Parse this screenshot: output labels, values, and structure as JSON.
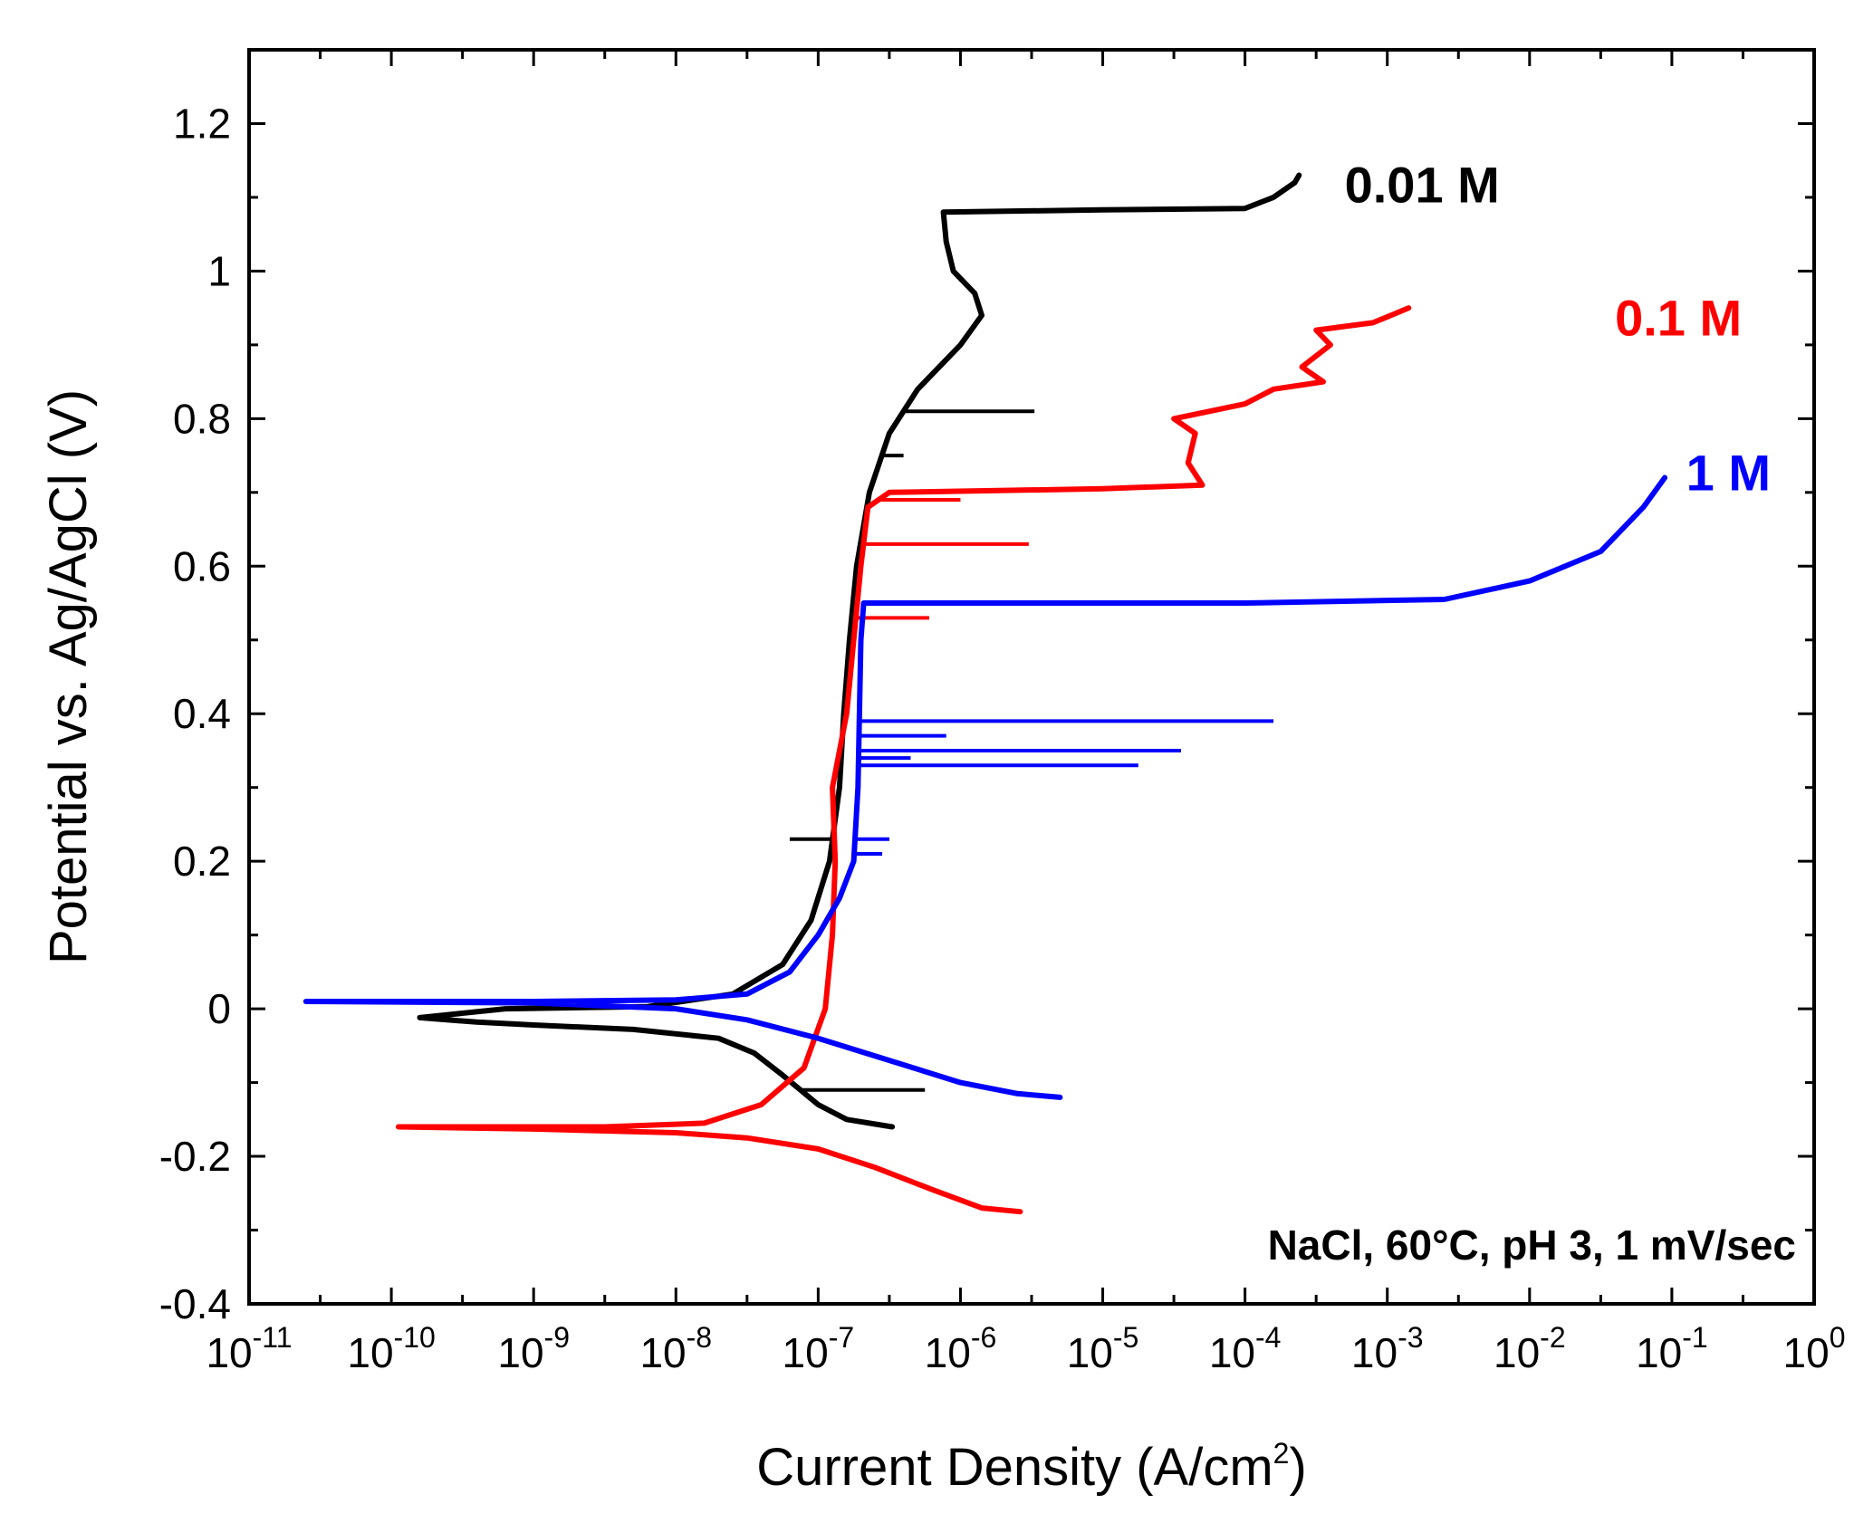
{
  "chart_data": {
    "type": "line",
    "title": "",
    "xlabel": "Current Density (A/cm",
    "xlabel_sup": "2",
    "xlabel_close": ")",
    "ylabel": "Potential vs. Ag/AgCl (V)",
    "x_scale": "log",
    "xlim_exp": [
      -11,
      0
    ],
    "ylim": [
      -0.4,
      1.3
    ],
    "grid": false,
    "x_ticks": [
      {
        "base": "10",
        "exp": "-11",
        "value_exp": -11
      },
      {
        "base": "10",
        "exp": "-10",
        "value_exp": -10
      },
      {
        "base": "10",
        "exp": "-9",
        "value_exp": -9
      },
      {
        "base": "10",
        "exp": "-8",
        "value_exp": -8
      },
      {
        "base": "10",
        "exp": "-7",
        "value_exp": -7
      },
      {
        "base": "10",
        "exp": "-6",
        "value_exp": -6
      },
      {
        "base": "10",
        "exp": "-5",
        "value_exp": -5
      },
      {
        "base": "10",
        "exp": "-4",
        "value_exp": -4
      },
      {
        "base": "10",
        "exp": "-3",
        "value_exp": -3
      },
      {
        "base": "10",
        "exp": "-2",
        "value_exp": -2
      },
      {
        "base": "10",
        "exp": "-1",
        "value_exp": -1
      },
      {
        "base": "10",
        "exp": "0",
        "value_exp": 0
      }
    ],
    "y_ticks": [
      {
        "label": "-0.4",
        "value": -0.4
      },
      {
        "label": "-0.2",
        "value": -0.2
      },
      {
        "label": "0",
        "value": 0
      },
      {
        "label": "0.2",
        "value": 0.2
      },
      {
        "label": "0.4",
        "value": 0.4
      },
      {
        "label": "0.6",
        "value": 0.6
      },
      {
        "label": "0.8",
        "value": 0.8
      },
      {
        "label": "1",
        "value": 1.0
      },
      {
        "label": "1.2",
        "value": 1.2
      }
    ],
    "annotation": "NaCl, 60°C, pH 3, 1 mV/sec",
    "series": [
      {
        "name": "0.01 M",
        "color": "#000000",
        "label_at": {
          "logx": -3.3,
          "y": 1.115
        },
        "points": [
          [
            -6.48,
            -0.16
          ],
          [
            -6.8,
            -0.15
          ],
          [
            -7.0,
            -0.13
          ],
          [
            -7.25,
            -0.09
          ],
          [
            -7.45,
            -0.06
          ],
          [
            -7.7,
            -0.04
          ],
          [
            -8.3,
            -0.028
          ],
          [
            -9.0,
            -0.022
          ],
          [
            -9.4,
            -0.018
          ],
          [
            -9.8,
            -0.012
          ],
          [
            -9.2,
            0.0
          ],
          [
            -8.2,
            0.003
          ],
          [
            -7.6,
            0.02
          ],
          [
            -7.25,
            0.06
          ],
          [
            -7.05,
            0.12
          ],
          [
            -6.92,
            0.2
          ],
          [
            -6.85,
            0.3
          ],
          [
            -6.82,
            0.4
          ],
          [
            -6.78,
            0.5
          ],
          [
            -6.73,
            0.6
          ],
          [
            -6.64,
            0.7
          ],
          [
            -6.5,
            0.78
          ],
          [
            -6.3,
            0.84
          ],
          [
            -6.0,
            0.9
          ],
          [
            -5.85,
            0.94
          ],
          [
            -5.9,
            0.97
          ],
          [
            -6.05,
            1.0
          ],
          [
            -6.1,
            1.04
          ],
          [
            -6.12,
            1.08
          ],
          [
            -5.0,
            1.083
          ],
          [
            -4.0,
            1.085
          ],
          [
            -3.8,
            1.1
          ],
          [
            -3.65,
            1.12
          ],
          [
            -3.62,
            1.13
          ]
        ],
        "spikes": [
          {
            "y": 0.81,
            "logx_end": -5.48
          },
          {
            "y": 0.75,
            "logx_end": -6.4
          },
          {
            "y": 0.23,
            "logx_end": -7.2
          },
          {
            "y": -0.11,
            "logx_end": -6.25
          }
        ]
      },
      {
        "name": "0.1 M",
        "color": "#ff0000",
        "label_at": {
          "logx": -1.4,
          "y": 0.935
        },
        "points": [
          [
            -5.58,
            -0.275
          ],
          [
            -5.85,
            -0.27
          ],
          [
            -6.2,
            -0.245
          ],
          [
            -6.6,
            -0.215
          ],
          [
            -7.0,
            -0.19
          ],
          [
            -7.5,
            -0.175
          ],
          [
            -8.0,
            -0.168
          ],
          [
            -9.0,
            -0.163
          ],
          [
            -9.95,
            -0.16
          ],
          [
            -8.5,
            -0.16
          ],
          [
            -7.8,
            -0.155
          ],
          [
            -7.4,
            -0.13
          ],
          [
            -7.1,
            -0.08
          ],
          [
            -6.95,
            0.0
          ],
          [
            -6.9,
            0.1
          ],
          [
            -6.88,
            0.2
          ],
          [
            -6.9,
            0.3
          ],
          [
            -6.8,
            0.4
          ],
          [
            -6.75,
            0.5
          ],
          [
            -6.7,
            0.6
          ],
          [
            -6.65,
            0.68
          ],
          [
            -6.5,
            0.7
          ],
          [
            -5.0,
            0.705
          ],
          [
            -4.3,
            0.71
          ],
          [
            -4.4,
            0.74
          ],
          [
            -4.35,
            0.78
          ],
          [
            -4.5,
            0.8
          ],
          [
            -4.0,
            0.82
          ],
          [
            -3.8,
            0.84
          ],
          [
            -3.45,
            0.85
          ],
          [
            -3.6,
            0.87
          ],
          [
            -3.4,
            0.9
          ],
          [
            -3.5,
            0.92
          ],
          [
            -3.1,
            0.93
          ],
          [
            -2.85,
            0.95
          ]
        ],
        "spikes": [
          {
            "y": 0.69,
            "logx_end": -6.0
          },
          {
            "y": 0.63,
            "logx_end": -5.52
          },
          {
            "y": 0.53,
            "logx_end": -6.22
          }
        ]
      },
      {
        "name": "1 M",
        "color": "#0000ff",
        "label_at": {
          "logx": -0.9,
          "y": 0.725
        },
        "points": [
          [
            -5.3,
            -0.12
          ],
          [
            -5.6,
            -0.115
          ],
          [
            -6.0,
            -0.1
          ],
          [
            -6.5,
            -0.07
          ],
          [
            -7.0,
            -0.04
          ],
          [
            -7.5,
            -0.015
          ],
          [
            -8.0,
            0.0
          ],
          [
            -9.0,
            0.008
          ],
          [
            -10.6,
            0.01
          ],
          [
            -9.0,
            0.01
          ],
          [
            -8.0,
            0.012
          ],
          [
            -7.5,
            0.02
          ],
          [
            -7.2,
            0.05
          ],
          [
            -7.0,
            0.1
          ],
          [
            -6.85,
            0.15
          ],
          [
            -6.75,
            0.2
          ],
          [
            -6.72,
            0.3
          ],
          [
            -6.71,
            0.4
          ],
          [
            -6.7,
            0.5
          ],
          [
            -6.68,
            0.55
          ],
          [
            -4.0,
            0.55
          ],
          [
            -2.6,
            0.555
          ],
          [
            -2.0,
            0.58
          ],
          [
            -1.5,
            0.62
          ],
          [
            -1.2,
            0.68
          ],
          [
            -1.05,
            0.72
          ]
        ],
        "spikes": [
          {
            "y": 0.39,
            "logx_end": -3.8
          },
          {
            "y": 0.37,
            "logx_end": -6.1
          },
          {
            "y": 0.35,
            "logx_end": -4.45
          },
          {
            "y": 0.34,
            "logx_end": -6.35
          },
          {
            "y": 0.33,
            "logx_end": -4.75
          },
          {
            "y": 0.23,
            "logx_end": -6.5
          },
          {
            "y": 0.21,
            "logx_end": -6.55
          }
        ]
      }
    ]
  }
}
